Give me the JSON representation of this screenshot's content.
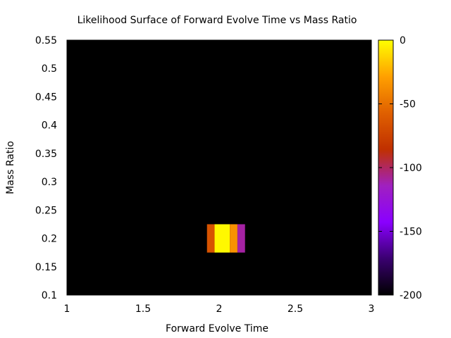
{
  "chart_data": {
    "type": "heatmap",
    "title": "Likelihood Surface of Forward Evolve Time vs Mass Ratio",
    "xlabel": "Forward Evolve Time",
    "ylabel": "Mass Ratio",
    "xlim": [
      1,
      3
    ],
    "ylim": [
      0.1,
      0.55
    ],
    "x_ticks": [
      "1",
      "1.5",
      "2",
      "2.5",
      "3"
    ],
    "y_ticks": [
      "0.1",
      "0.15",
      "0.2",
      "0.25",
      "0.3",
      "0.35",
      "0.4",
      "0.45",
      "0.5",
      "0.55"
    ],
    "background_value": -200,
    "cells": [
      {
        "x0": 1.92,
        "x1": 1.97,
        "y0": 0.175,
        "y1": 0.225,
        "value": -65
      },
      {
        "x0": 1.97,
        "x1": 2.07,
        "y0": 0.175,
        "y1": 0.225,
        "value": -2
      },
      {
        "x0": 2.07,
        "x1": 2.12,
        "y0": 0.175,
        "y1": 0.225,
        "value": -35
      },
      {
        "x0": 2.12,
        "x1": 2.17,
        "y0": 0.175,
        "y1": 0.225,
        "value": -110
      }
    ],
    "colorbar": {
      "range": [
        -200,
        0
      ],
      "tick_labels": [
        "0",
        "-50",
        "-100",
        "-150",
        "-200"
      ],
      "tick_values": [
        0,
        -50,
        -100,
        -150,
        -200
      ],
      "colormap": [
        "#000000",
        "#3a0070",
        "#8a00ff",
        "#a020c0",
        "#c03000",
        "#e06000",
        "#ffa000",
        "#ffff00"
      ]
    }
  }
}
